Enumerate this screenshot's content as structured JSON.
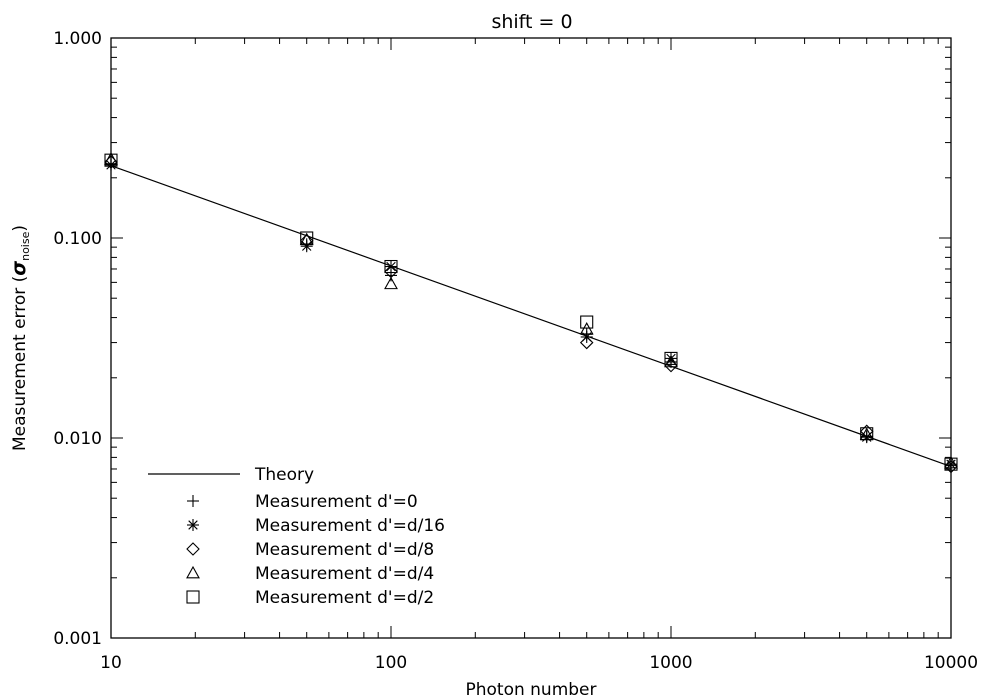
{
  "chart_data": {
    "type": "scatter",
    "title": "shift = 0",
    "xlabel": "Photon number",
    "ylabel_main": "Measurement error (",
    "ylabel_symbol": "σ",
    "ylabel_sub": "noise",
    "ylabel_close": ")",
    "x_scale": "log",
    "y_scale": "log",
    "xlim": [
      10,
      10000
    ],
    "ylim": [
      0.001,
      1.0
    ],
    "x_ticks": [
      {
        "value": 10,
        "label": "10"
      },
      {
        "value": 100,
        "label": "100"
      },
      {
        "value": 1000,
        "label": "1000"
      },
      {
        "value": 10000,
        "label": "10000"
      }
    ],
    "y_ticks": [
      {
        "value": 0.001,
        "label": "0.001"
      },
      {
        "value": 0.01,
        "label": "0.010"
      },
      {
        "value": 0.1,
        "label": "0.100"
      },
      {
        "value": 1.0,
        "label": "1.000"
      }
    ],
    "grid": false,
    "legend_position": "bottom-left",
    "theory": {
      "name": "Theory",
      "x": [
        10,
        10000
      ],
      "y": [
        0.23,
        0.0072
      ]
    },
    "series": [
      {
        "name": "Measurement d'=0",
        "marker": "plus",
        "x": [
          10,
          50,
          100,
          500,
          1000,
          5000,
          10000
        ],
        "y": [
          0.235,
          0.093,
          0.065,
          0.033,
          0.024,
          0.0102,
          0.0073
        ]
      },
      {
        "name": "Measurement d'=d/16",
        "marker": "asterisk",
        "x": [
          10,
          50,
          100,
          500,
          1000,
          5000,
          10000
        ],
        "y": [
          0.232,
          0.091,
          0.072,
          0.032,
          0.025,
          0.0101,
          0.0074
        ]
      },
      {
        "name": "Measurement d'=d/8",
        "marker": "diamond",
        "x": [
          10,
          50,
          100,
          500,
          1000,
          5000,
          10000
        ],
        "y": [
          0.24,
          0.097,
          0.068,
          0.03,
          0.023,
          0.0108,
          0.0072
        ]
      },
      {
        "name": "Measurement d'=d/4",
        "marker": "triangle",
        "x": [
          10,
          50,
          100,
          500,
          1000,
          5000,
          10000
        ],
        "y": [
          0.248,
          0.098,
          0.059,
          0.035,
          0.024,
          0.0104,
          0.0075
        ]
      },
      {
        "name": "Measurement d'=d/2",
        "marker": "square",
        "x": [
          10,
          50,
          100,
          500,
          1000,
          5000,
          10000
        ],
        "y": [
          0.245,
          0.1,
          0.072,
          0.038,
          0.025,
          0.0105,
          0.0074
        ]
      }
    ]
  }
}
